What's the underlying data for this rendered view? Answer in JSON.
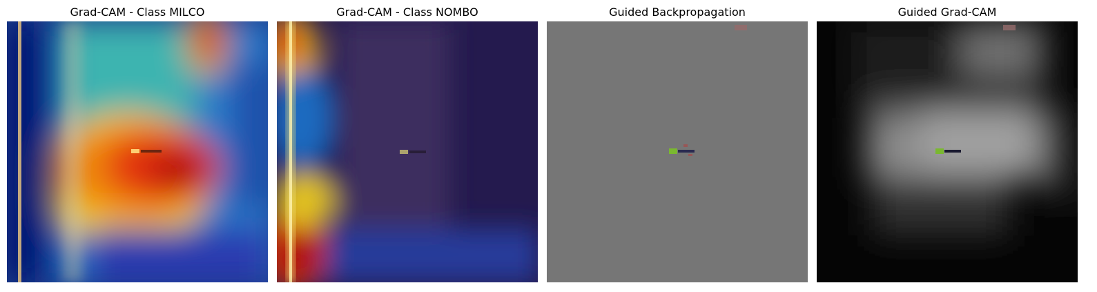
{
  "panels": [
    {
      "title": "Grad-CAM - Class MILCO"
    },
    {
      "title": "Grad-CAM - Class NOMBO"
    },
    {
      "title": "Guided Backpropagation"
    },
    {
      "title": "Guided Grad-CAM"
    }
  ]
}
